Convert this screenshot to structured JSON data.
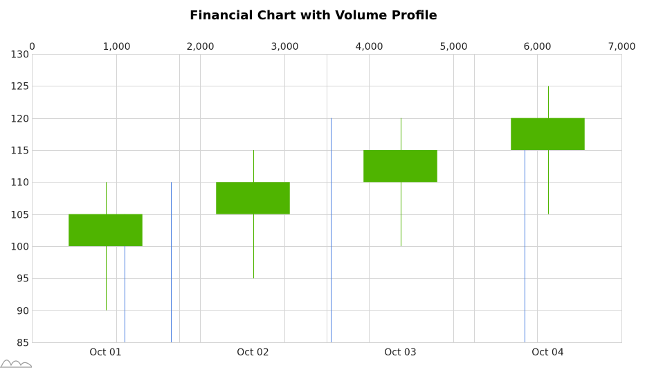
{
  "chart_data": {
    "type": "candlestick",
    "title": "Financial Chart with Volume Profile",
    "categories": [
      "Oct 01",
      "Oct 02",
      "Oct 03",
      "Oct 04"
    ],
    "candles": [
      {
        "date": "Oct 01",
        "open": 100,
        "high": 110,
        "low": 90,
        "close": 105
      },
      {
        "date": "Oct 02",
        "open": 105,
        "high": 115,
        "low": 95,
        "close": 110
      },
      {
        "date": "Oct 03",
        "open": 110,
        "high": 120,
        "low": 100,
        "close": 115
      },
      {
        "date": "Oct 04",
        "open": 115,
        "high": 125,
        "low": 105,
        "close": 120
      }
    ],
    "volume_profile": [
      {
        "volume": 1100,
        "from": 85,
        "to": 105
      },
      {
        "volume": 1650,
        "from": 85,
        "to": 110
      },
      {
        "volume": 3550,
        "from": 85,
        "to": 120
      },
      {
        "volume": 5850,
        "from": 85,
        "to": 115
      }
    ],
    "ylim": [
      85,
      130
    ],
    "y_ticks": [
      85,
      90,
      95,
      100,
      105,
      110,
      115,
      120,
      125,
      130
    ],
    "x2lim": [
      0,
      7000
    ],
    "x2_ticks": [
      "0",
      "1,000",
      "2,000",
      "3,000",
      "4,000",
      "5,000",
      "6,000",
      "7,000"
    ],
    "x2_tick_values": [
      0,
      1000,
      2000,
      3000,
      4000,
      5000,
      6000,
      7000
    ],
    "grid": true,
    "colors": {
      "candle": "#4fb400",
      "wick": "#4fb400",
      "volume": "#4a7fe0"
    }
  }
}
